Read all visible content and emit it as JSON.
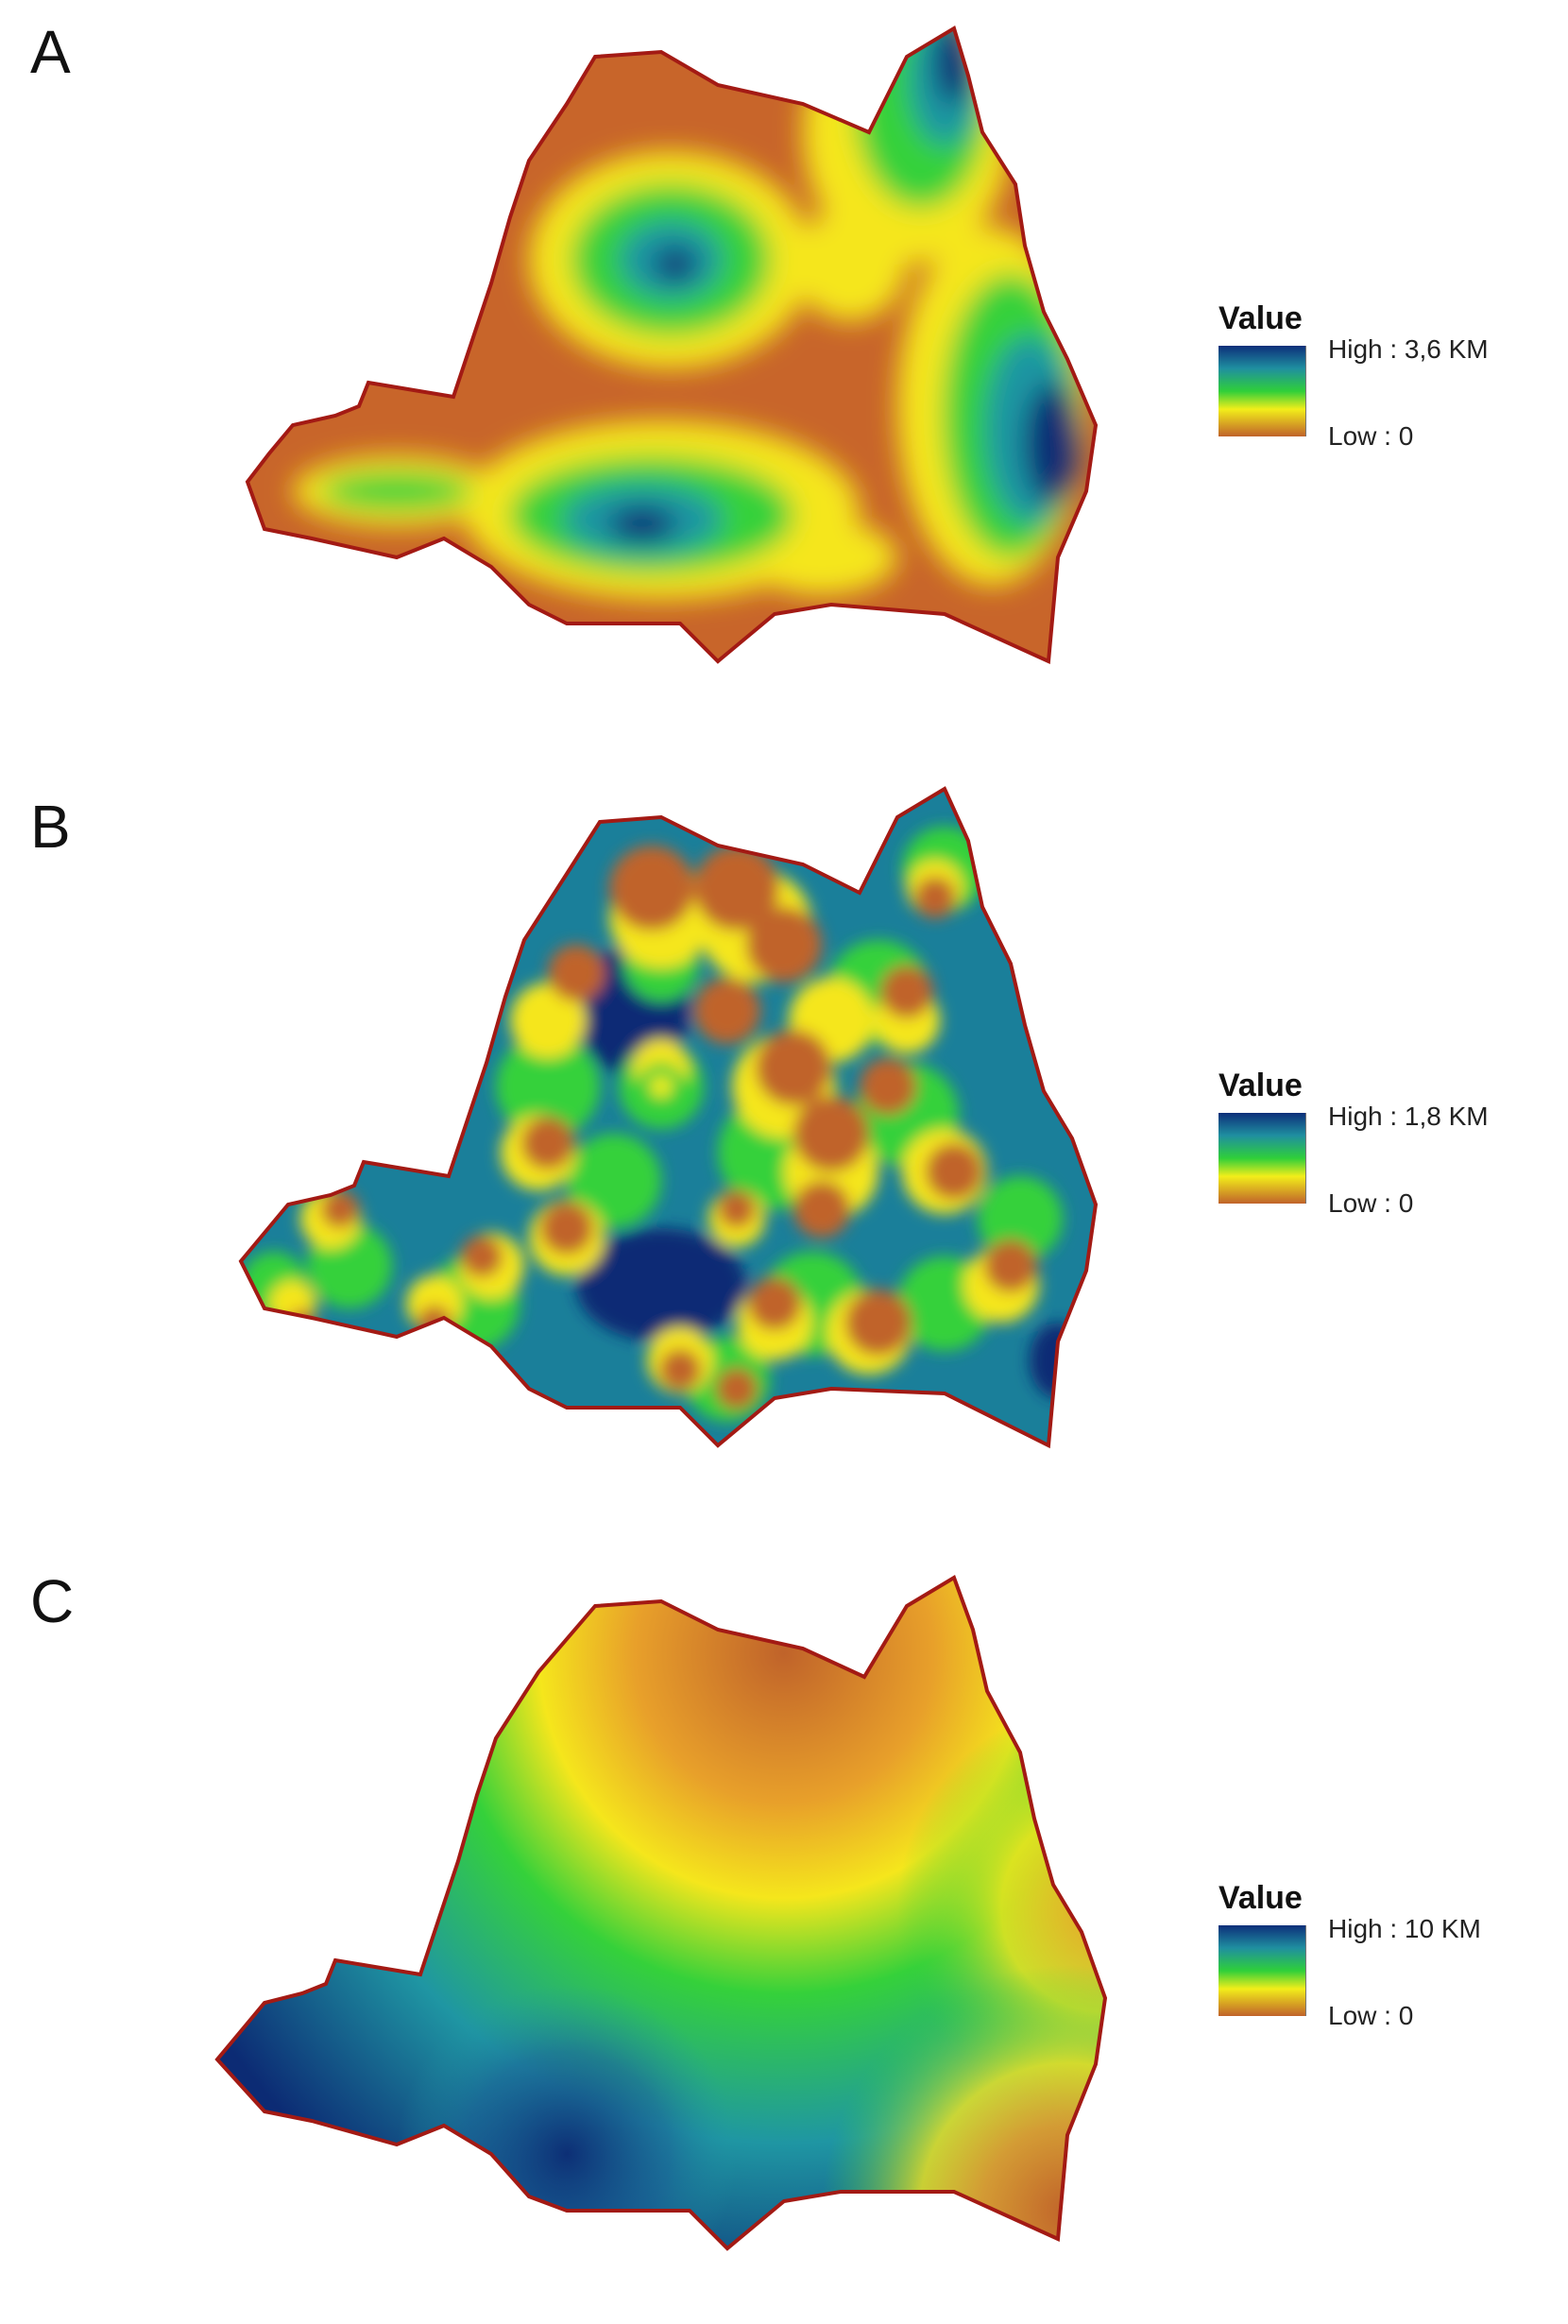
{
  "colors": {
    "high": "#0d2f7a",
    "mid_high": "#1f8fa0",
    "mid": "#2fcf3a",
    "mid_low": "#f2ee1a",
    "low": "#c0632a",
    "outline": "#a31a14"
  },
  "panels": [
    {
      "id": "A",
      "letter": "A",
      "legend": {
        "title": "Value",
        "high": "High : 3,6 KM",
        "low": "Low : 0"
      },
      "max_distance_km": 3.6
    },
    {
      "id": "B",
      "letter": "B",
      "legend": {
        "title": "Value",
        "high": "High : 1,8 KM",
        "low": "Low : 0"
      },
      "max_distance_km": 1.8
    },
    {
      "id": "C",
      "letter": "C",
      "legend": {
        "title": "Value",
        "high": "High : 10 KM",
        "low": "Low : 0"
      },
      "max_distance_km": 10
    }
  ]
}
